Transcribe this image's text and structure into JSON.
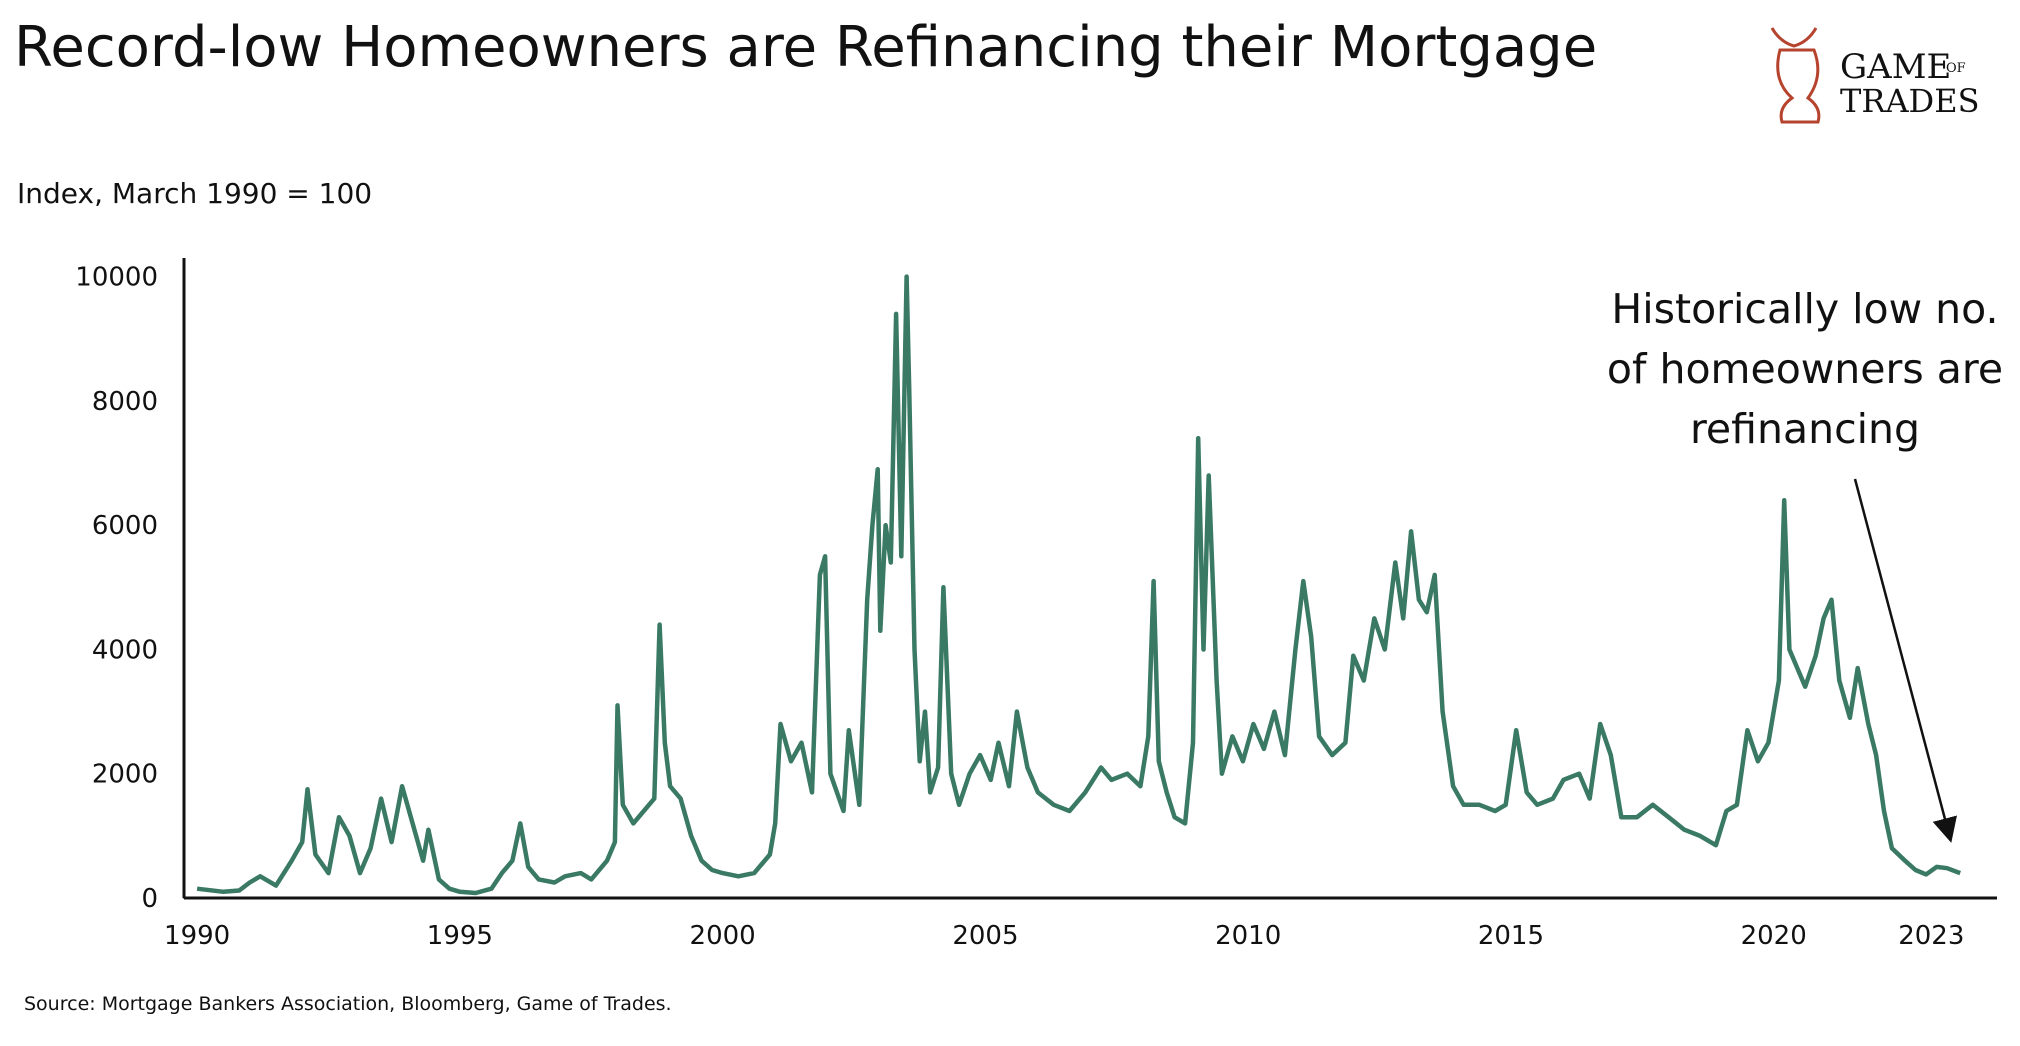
{
  "chart_data": {
    "type": "line",
    "title": "Record-low Homeowners are Refinancing their Mortgage",
    "subtitle": "Index, March 1990 = 100",
    "source": "Source: Mortgage Bankers Association, Bloomberg, Game of Trades.",
    "annotation": [
      "Historically low no.",
      "of homeowners are",
      "refinancing"
    ],
    "logo": {
      "line1": "GAME",
      "small": "OF",
      "line2": "TRADES"
    },
    "color": "#3a7a64",
    "x": [
      1990,
      1990.5,
      1990.8,
      1991,
      1991.2,
      1991.5,
      1991.8,
      1992,
      1992.1,
      1992.25,
      1992.5,
      1992.7,
      1992.9,
      1993.1,
      1993.3,
      1993.5,
      1993.7,
      1993.9,
      1994.1,
      1994.3,
      1994.4,
      1994.6,
      1994.8,
      1995,
      1995.3,
      1995.6,
      1995.8,
      1996,
      1996.15,
      1996.3,
      1996.5,
      1996.8,
      1997,
      1997.3,
      1997.5,
      1997.8,
      1997.95,
      1998.0,
      1998.1,
      1998.3,
      1998.5,
      1998.7,
      1998.8,
      1998.9,
      1999.0,
      1999.2,
      1999.4,
      1999.6,
      1999.8,
      2000.0,
      2000.3,
      2000.6,
      2000.9,
      2001.0,
      2001.1,
      2001.3,
      2001.5,
      2001.7,
      2001.85,
      2001.95,
      2002.05,
      2002.3,
      2002.4,
      2002.6,
      2002.75,
      2002.85,
      2002.95,
      2003.0,
      2003.1,
      2003.2,
      2003.3,
      2003.4,
      2003.5,
      2003.55,
      2003.65,
      2003.75,
      2003.85,
      2003.95,
      2004.1,
      2004.2,
      2004.35,
      2004.5,
      2004.7,
      2004.9,
      2005.1,
      2005.25,
      2005.45,
      2005.6,
      2005.8,
      2006.0,
      2006.3,
      2006.6,
      2006.9,
      2007.2,
      2007.4,
      2007.7,
      2007.95,
      2008.1,
      2008.2,
      2008.3,
      2008.45,
      2008.6,
      2008.8,
      2008.95,
      2009.05,
      2009.15,
      2009.25,
      2009.4,
      2009.5,
      2009.7,
      2009.9,
      2010.1,
      2010.3,
      2010.5,
      2010.7,
      2010.9,
      2011.05,
      2011.2,
      2011.35,
      2011.6,
      2011.85,
      2012.0,
      2012.2,
      2012.4,
      2012.6,
      2012.8,
      2012.95,
      2013.1,
      2013.25,
      2013.4,
      2013.55,
      2013.7,
      2013.9,
      2014.1,
      2014.4,
      2014.7,
      2014.9,
      2015.1,
      2015.3,
      2015.5,
      2015.8,
      2016.0,
      2016.3,
      2016.5,
      2016.7,
      2016.9,
      2017.1,
      2017.4,
      2017.7,
      2018.0,
      2018.3,
      2018.6,
      2018.9,
      2019.1,
      2019.3,
      2019.5,
      2019.7,
      2019.9,
      2020.1,
      2020.2,
      2020.3,
      2020.45,
      2020.6,
      2020.8,
      2020.95,
      2021.1,
      2021.25,
      2021.45,
      2021.6,
      2021.8,
      2021.95,
      2022.1,
      2022.25,
      2022.5,
      2022.7,
      2022.9,
      2023.1,
      2023.3,
      2023.55
    ],
    "values": [
      150,
      100,
      120,
      250,
      350,
      200,
      600,
      900,
      1750,
      700,
      400,
      1300,
      1000,
      400,
      800,
      1600,
      900,
      1800,
      1200,
      600,
      1100,
      300,
      150,
      100,
      80,
      150,
      400,
      600,
      1200,
      500,
      300,
      250,
      350,
      400,
      300,
      600,
      900,
      3100,
      1500,
      1200,
      1400,
      1600,
      4400,
      2500,
      1800,
      1600,
      1000,
      600,
      450,
      400,
      350,
      400,
      700,
      1200,
      2800,
      2200,
      2500,
      1700,
      5200,
      5500,
      2000,
      1400,
      2700,
      1500,
      4800,
      6000,
      6900,
      4300,
      6000,
      5400,
      9400,
      5500,
      10000,
      8200,
      4000,
      2200,
      3000,
      1700,
      2100,
      5000,
      2000,
      1500,
      2000,
      2300,
      1900,
      2500,
      1800,
      3000,
      2100,
      1700,
      1500,
      1400,
      1700,
      2100,
      1900,
      2000,
      1800,
      2600,
      5100,
      2200,
      1700,
      1300,
      1200,
      2500,
      7400,
      4000,
      6800,
      3500,
      2000,
      2600,
      2200,
      2800,
      2400,
      3000,
      2300,
      4000,
      5100,
      4200,
      2600,
      2300,
      2500,
      3900,
      3500,
      4500,
      4000,
      5400,
      4500,
      5900,
      4800,
      4600,
      5200,
      3000,
      1800,
      1500,
      1500,
      1400,
      1500,
      2700,
      1700,
      1500,
      1600,
      1900,
      2000,
      1600,
      2800,
      2300,
      1300,
      1300,
      1500,
      1300,
      1100,
      1000,
      850,
      1400,
      1500,
      2700,
      2200,
      2500,
      3500,
      6400,
      4000,
      3700,
      3400,
      3900,
      4500,
      4800,
      3500,
      2900,
      3700,
      2800,
      2300,
      1400,
      800,
      600,
      450,
      380,
      500,
      480,
      400
    ],
    "xlim": [
      1989.75,
      2024.25
    ],
    "xticks": [
      1990,
      1995,
      2000,
      2005,
      2010,
      2015,
      2020,
      2023
    ],
    "ylim": [
      0,
      10300
    ],
    "yticks": [
      0,
      2000,
      4000,
      6000,
      8000,
      10000
    ]
  }
}
